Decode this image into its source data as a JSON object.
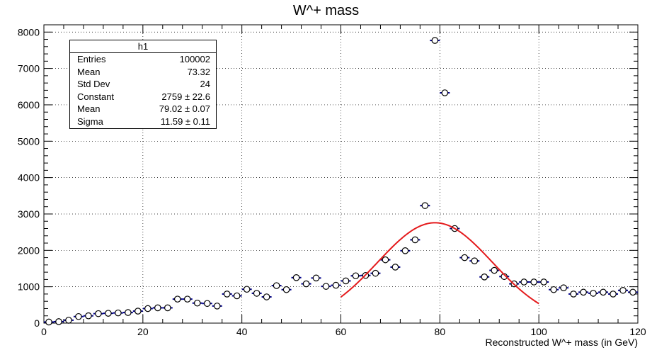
{
  "chart_data": {
    "type": "scatter",
    "title": "W^+ mass",
    "xlabel": "Reconstructed W^+ mass (in GeV)",
    "ylabel": "",
    "xlim": [
      0,
      120
    ],
    "ylim": [
      0,
      8200
    ],
    "xticks": [
      0,
      20,
      40,
      60,
      80,
      100,
      120
    ],
    "yticks": [
      0,
      1000,
      2000,
      3000,
      4000,
      5000,
      6000,
      7000,
      8000
    ],
    "grid": true,
    "bin_width": 2,
    "series": [
      {
        "x": [
          1,
          3,
          5,
          7,
          9,
          11,
          13,
          15,
          17,
          19,
          21,
          23,
          25,
          27,
          29,
          31,
          33,
          35,
          37,
          39,
          41,
          43,
          45,
          47,
          49,
          51,
          53,
          55,
          57,
          59,
          61,
          63,
          65,
          67,
          69,
          71,
          73,
          75,
          77,
          79,
          81,
          83,
          85,
          87,
          89,
          91,
          93,
          95,
          97,
          99,
          101,
          103,
          105,
          107,
          109,
          111,
          113,
          115,
          117,
          119
        ],
        "y": [
          30,
          40,
          80,
          180,
          200,
          260,
          270,
          280,
          290,
          330,
          400,
          420,
          420,
          660,
          660,
          550,
          540,
          470,
          800,
          750,
          930,
          820,
          720,
          1030,
          920,
          1250,
          1080,
          1240,
          1010,
          1040,
          1160,
          1300,
          1310,
          1370,
          1740,
          1540,
          1990,
          2290,
          3230,
          7770,
          6330,
          2600,
          1800,
          1710,
          1270,
          1450,
          1280,
          1080,
          1130,
          1130,
          1130,
          920,
          970,
          800,
          850,
          820,
          850,
          800,
          900,
          850
        ]
      }
    ],
    "fit": {
      "color": "#e41a1c",
      "constant": 2759,
      "mean": 79.02,
      "sigma": 11.59,
      "range": [
        60,
        100
      ]
    },
    "stats_box": {
      "name": "h1",
      "rows": [
        {
          "key": "Entries",
          "value": "100002"
        },
        {
          "key": "Mean",
          "value": "73.32"
        },
        {
          "key": "Std Dev",
          "value": "24"
        },
        {
          "key": "Constant",
          "value": "2759 ± 22.6"
        },
        {
          "key": "Mean",
          "value": "79.02 ± 0.07"
        },
        {
          "key": "Sigma",
          "value": "11.59 ± 0.11"
        }
      ]
    }
  }
}
